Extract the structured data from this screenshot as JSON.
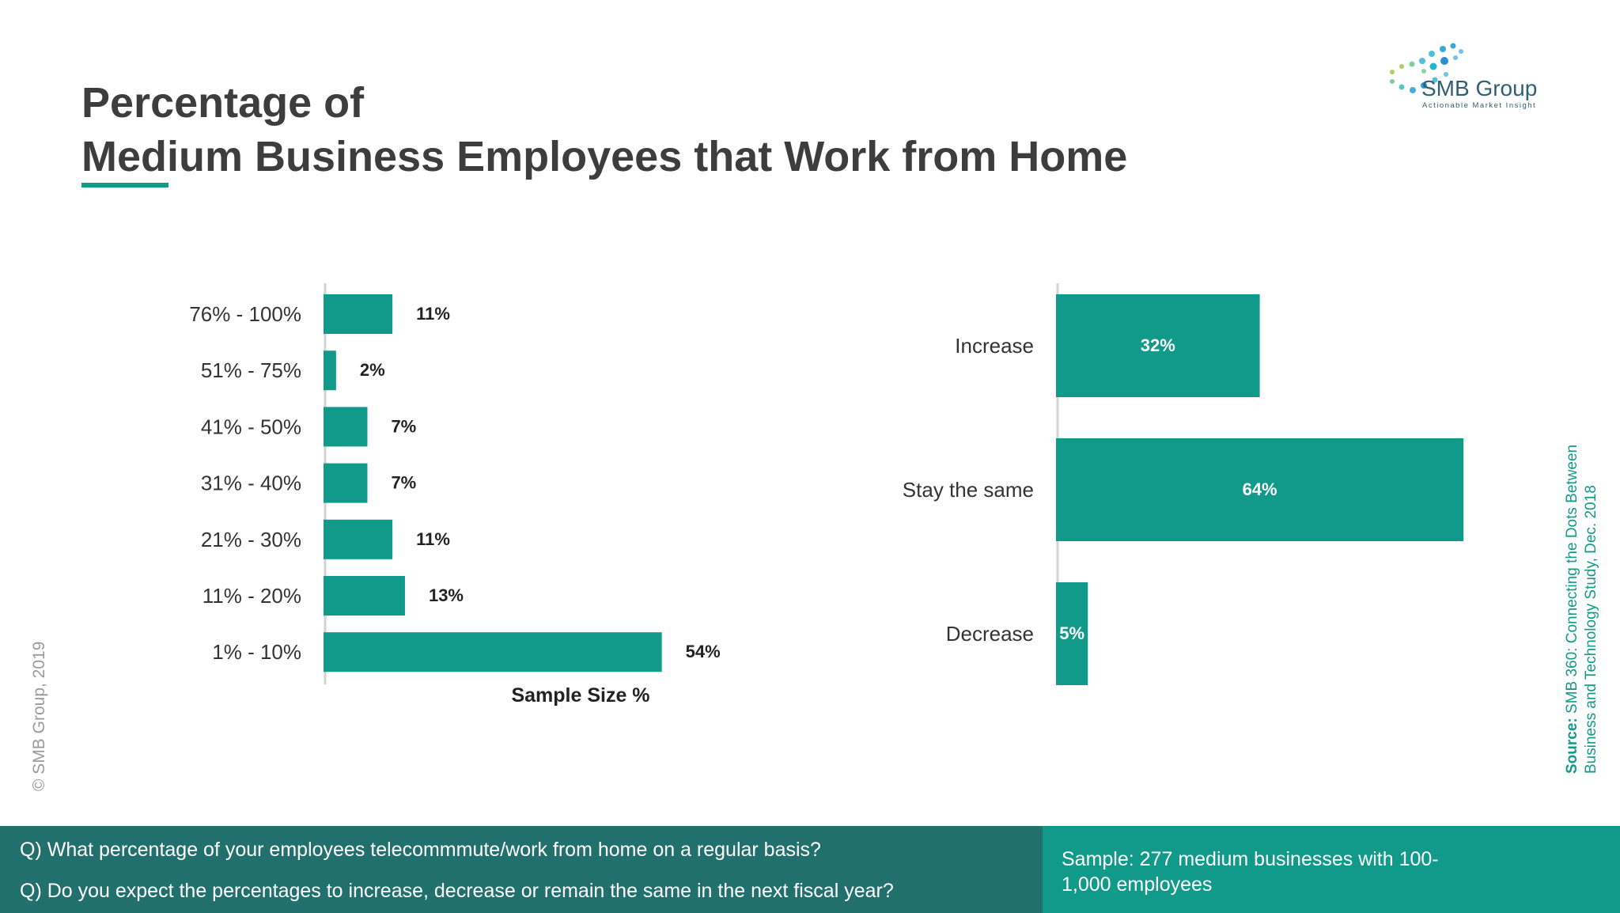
{
  "header": {
    "title_line1": "Percentage of",
    "title_line2": "Medium Business Employees that Work from Home"
  },
  "logo": {
    "name": "SMB Group",
    "tagline": "Actionable Market Insight"
  },
  "chart_data": [
    {
      "type": "bar",
      "orientation": "horizontal",
      "categories": [
        "76% - 100%",
        "51% - 75%",
        "41% - 50%",
        "31% - 40%",
        "21% - 30%",
        "11% - 20%",
        "1% - 10%"
      ],
      "values": [
        11,
        2,
        7,
        7,
        11,
        13,
        54
      ],
      "value_labels": [
        "11%",
        "2%",
        "7%",
        "7%",
        "11%",
        "13%",
        "54%"
      ],
      "xlabel": "Sample Size %",
      "xlim": [
        0,
        64
      ],
      "color": "#11998a"
    },
    {
      "type": "bar",
      "orientation": "horizontal",
      "categories": [
        "Increase",
        "Stay the same",
        "Decrease"
      ],
      "values": [
        32,
        64,
        5
      ],
      "value_labels": [
        "32%",
        "64%",
        "5%"
      ],
      "xlim": [
        0,
        64
      ],
      "color": "#11998a"
    }
  ],
  "copyright": "© SMB Group, 2019",
  "source": {
    "label": "Source:",
    "line1": " SMB 360: Connecting the Dots Between",
    "line2": "Business and Technology  Study, Dec. 2018"
  },
  "footer": {
    "question1": "Q) What percentage of your employees telecommmute/work from home on a regular basis?",
    "question2": "Q) Do you expect the percentages to increase, decrease or remain the same in the next fiscal year?",
    "sample": "Sample: 277 medium businesses with 100-1,000 employees"
  },
  "colors": {
    "accent": "#11998a",
    "footer_dark": "#22706d",
    "title": "#3d3d3d"
  }
}
